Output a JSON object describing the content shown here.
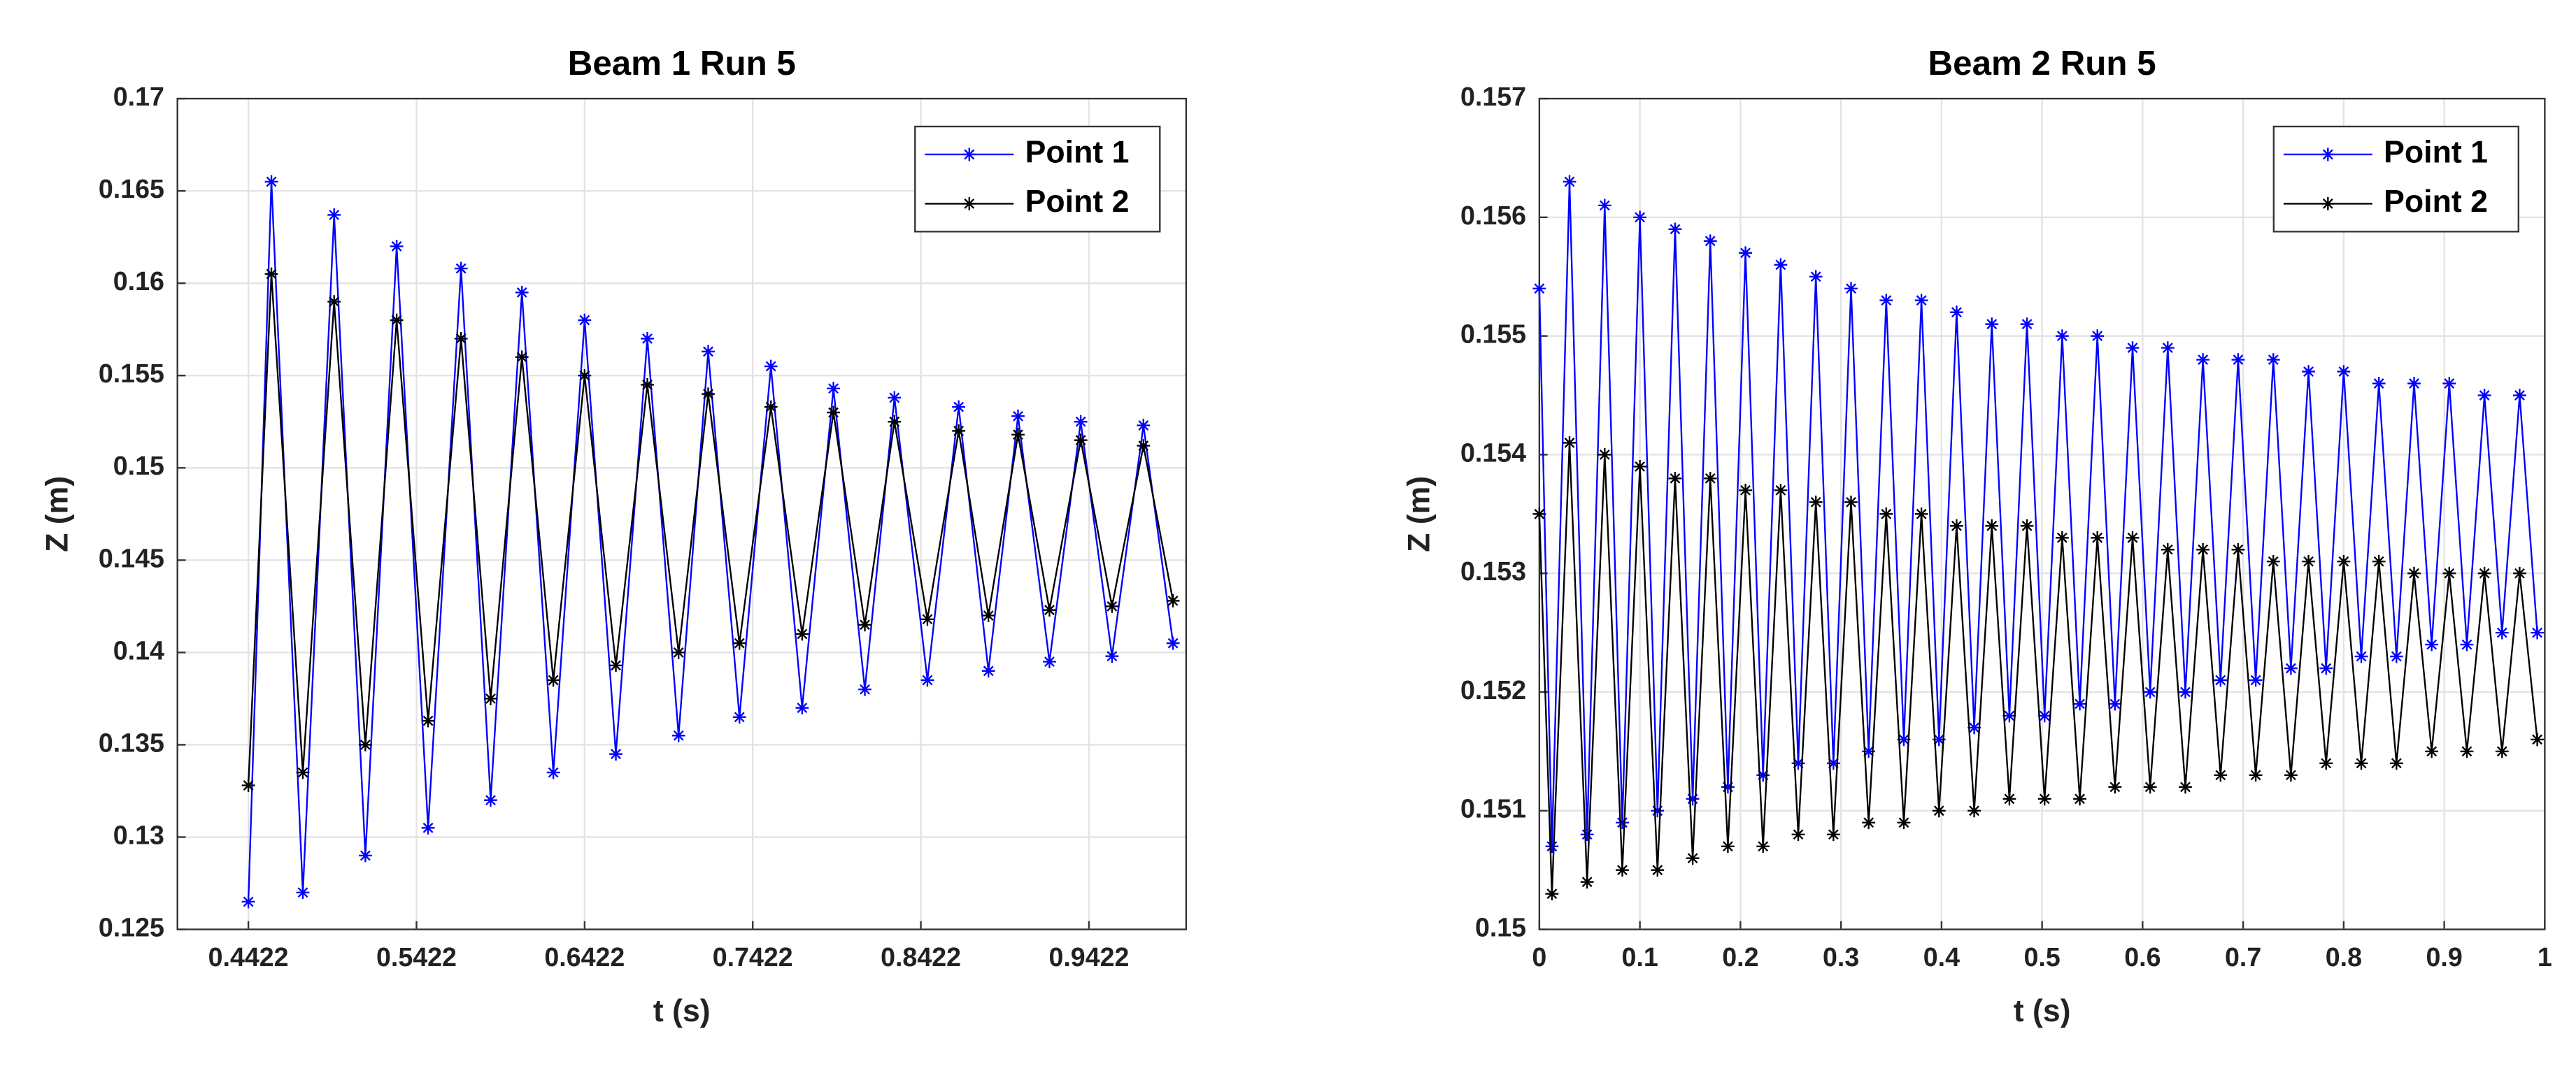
{
  "chart_data": [
    {
      "type": "line",
      "title": "Beam 1 Run 5",
      "xlabel": "t (s)",
      "ylabel": "Z (m)",
      "grid": true,
      "legend": "upper right",
      "xlim": [
        0.4,
        1.0
      ],
      "xticks": [
        0.4422,
        0.5422,
        0.6422,
        0.7422,
        0.8422,
        0.9422
      ],
      "ylim": [
        0.125,
        0.17
      ],
      "yticks": [
        0.125,
        0.13,
        0.135,
        0.14,
        0.145,
        0.15,
        0.155,
        0.16,
        0.165,
        0.17
      ],
      "x": [
        0.4422,
        0.4559,
        0.4746,
        0.4932,
        0.5118,
        0.5304,
        0.5491,
        0.5687,
        0.5863,
        0.6049,
        0.6236,
        0.6422,
        0.6608,
        0.6795,
        0.6981,
        0.7157,
        0.7343,
        0.753,
        0.7716,
        0.7902,
        0.8089,
        0.8265,
        0.8461,
        0.8647,
        0.8824,
        0.9,
        0.9187,
        0.9373,
        0.9559,
        0.9746,
        0.9922
      ],
      "series": [
        {
          "name": "Point 1",
          "color": "#0000ff",
          "values": [
            0.1265,
            0.1655,
            0.127,
            0.1637,
            0.129,
            0.162,
            0.1305,
            0.1608,
            0.132,
            0.1595,
            0.1335,
            0.158,
            0.1345,
            0.157,
            0.1355,
            0.1563,
            0.1365,
            0.1555,
            0.137,
            0.1543,
            0.138,
            0.1538,
            0.1385,
            0.1533,
            0.139,
            0.1528,
            0.1395,
            0.1525,
            0.1398,
            0.1523,
            0.1405
          ]
        },
        {
          "name": "Point 2",
          "color": "#000000",
          "values": [
            0.1328,
            0.1605,
            0.1335,
            0.159,
            0.135,
            0.158,
            0.1363,
            0.157,
            0.1375,
            0.156,
            0.1385,
            0.155,
            0.1393,
            0.1545,
            0.14,
            0.154,
            0.1405,
            0.1533,
            0.141,
            0.153,
            0.1415,
            0.1525,
            0.1418,
            0.152,
            0.142,
            0.1518,
            0.1423,
            0.1515,
            0.1425,
            0.1512,
            0.1428
          ]
        }
      ]
    },
    {
      "type": "line",
      "title": "Beam 2 Run 5",
      "xlabel": "t (s)",
      "ylabel": "Z (m)",
      "grid": true,
      "legend": "upper right",
      "xlim": [
        0,
        1
      ],
      "xticks": [
        0,
        0.1,
        0.2,
        0.3,
        0.4,
        0.5,
        0.6,
        0.7,
        0.8,
        0.9,
        1
      ],
      "ylim": [
        0.15,
        0.157
      ],
      "yticks": [
        0.15,
        0.151,
        0.152,
        0.153,
        0.154,
        0.155,
        0.156,
        0.157
      ],
      "x": [
        0,
        0.0125,
        0.03,
        0.0475,
        0.065,
        0.0825,
        0.1,
        0.1175,
        0.135,
        0.1525,
        0.17,
        0.1875,
        0.205,
        0.2225,
        0.24,
        0.2575,
        0.275,
        0.2925,
        0.31,
        0.3275,
        0.345,
        0.3625,
        0.38,
        0.3975,
        0.415,
        0.4325,
        0.45,
        0.4675,
        0.485,
        0.5025,
        0.52,
        0.5375,
        0.555,
        0.5725,
        0.59,
        0.6075,
        0.625,
        0.6425,
        0.66,
        0.6775,
        0.695,
        0.7125,
        0.73,
        0.7475,
        0.765,
        0.7825,
        0.8,
        0.8175,
        0.835,
        0.8525,
        0.87,
        0.8875,
        0.905,
        0.9225,
        0.94,
        0.9575,
        0.975,
        0.9925
      ],
      "series": [
        {
          "name": "Point 1",
          "color": "#0000ff",
          "values": [
            0.1554,
            0.1507,
            0.1563,
            0.1508,
            0.1561,
            0.1509,
            0.156,
            0.151,
            0.1559,
            0.1511,
            0.1558,
            0.1512,
            0.1557,
            0.1513,
            0.1556,
            0.1514,
            0.1555,
            0.1514,
            0.1554,
            0.1515,
            0.1553,
            0.1516,
            0.1553,
            0.1516,
            0.1552,
            0.1517,
            0.1551,
            0.1518,
            0.1551,
            0.1518,
            0.155,
            0.1519,
            0.155,
            0.1519,
            0.1549,
            0.152,
            0.1549,
            0.152,
            0.1548,
            0.1521,
            0.1548,
            0.1521,
            0.1548,
            0.1522,
            0.1547,
            0.1522,
            0.1547,
            0.1523,
            0.1546,
            0.1523,
            0.1546,
            0.1524,
            0.1546,
            0.1524,
            0.1545,
            0.1525,
            0.1545,
            0.1525
          ]
        },
        {
          "name": "Point 2",
          "color": "#000000",
          "values": [
            0.1535,
            0.1503,
            0.1541,
            0.1504,
            0.154,
            0.1505,
            0.1539,
            0.1505,
            0.1538,
            0.1506,
            0.1538,
            0.1507,
            0.1537,
            0.1507,
            0.1537,
            0.1508,
            0.1536,
            0.1508,
            0.1536,
            0.1509,
            0.1535,
            0.1509,
            0.1535,
            0.151,
            0.1534,
            0.151,
            0.1534,
            0.1511,
            0.1534,
            0.1511,
            0.1533,
            0.1511,
            0.1533,
            0.1512,
            0.1533,
            0.1512,
            0.1532,
            0.1512,
            0.1532,
            0.1513,
            0.1532,
            0.1513,
            0.1531,
            0.1513,
            0.1531,
            0.1514,
            0.1531,
            0.1514,
            0.1531,
            0.1514,
            0.153,
            0.1515,
            0.153,
            0.1515,
            0.153,
            0.1515,
            0.153,
            0.1516
          ]
        }
      ]
    }
  ]
}
